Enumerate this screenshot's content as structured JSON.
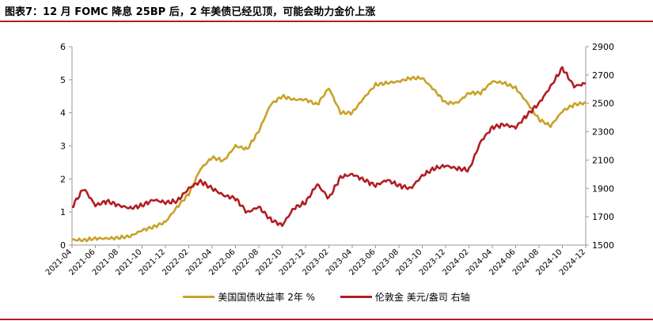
{
  "header": {
    "title": "图表7：12 月 FOMC 降息 25BP 后，2 年美债已经见顶，可能会助力金价上涨"
  },
  "colors": {
    "accent": "#b01e23",
    "series_gold": "#c9a227",
    "series_red": "#b01e23",
    "axis": "#999999"
  },
  "chart_data": {
    "type": "line",
    "title": "",
    "x_ticks": [
      "2021-04",
      "2021-06",
      "2021-08",
      "2021-10",
      "2021-12",
      "2022-02",
      "2022-04",
      "2022-06",
      "2022-08",
      "2022-10",
      "2022-12",
      "2023-02",
      "2023-04",
      "2023-06",
      "2023-08",
      "2023-10",
      "2023-12",
      "2024-02",
      "2024-04",
      "2024-06",
      "2024-08",
      "2024-10",
      "2024-12"
    ],
    "x_range": [
      "2021-04",
      "2024-12"
    ],
    "y_left": {
      "ticks": [
        "0",
        "1",
        "2",
        "3",
        "4",
        "5",
        "6"
      ],
      "range": [
        0,
        6
      ]
    },
    "y_right": {
      "ticks": [
        "1500",
        "1700",
        "1900",
        "2100",
        "2300",
        "2500",
        "2700",
        "2900"
      ],
      "range": [
        1500,
        2900
      ]
    },
    "grid": false,
    "legend": "bottom",
    "series": [
      {
        "name": "美国国债收益率 2年 %",
        "axis": "left",
        "color": "#c9a227",
        "points": [
          [
            "2021-04",
            0.16
          ],
          [
            "2021-05",
            0.15
          ],
          [
            "2021-06",
            0.2
          ],
          [
            "2021-07",
            0.2
          ],
          [
            "2021-08",
            0.22
          ],
          [
            "2021-09",
            0.27
          ],
          [
            "2021-10",
            0.45
          ],
          [
            "2021-11",
            0.55
          ],
          [
            "2021-12",
            0.7
          ],
          [
            "2022-01",
            1.15
          ],
          [
            "2022-02",
            1.55
          ],
          [
            "2022-03",
            2.3
          ],
          [
            "2022-04",
            2.65
          ],
          [
            "2022-05",
            2.55
          ],
          [
            "2022-06",
            3.0
          ],
          [
            "2022-07",
            2.9
          ],
          [
            "2022-08",
            3.45
          ],
          [
            "2022-09",
            4.25
          ],
          [
            "2022-10",
            4.5
          ],
          [
            "2022-11",
            4.4
          ],
          [
            "2022-12",
            4.4
          ],
          [
            "2023-01",
            4.25
          ],
          [
            "2023-02",
            4.75
          ],
          [
            "2023-03",
            4.0
          ],
          [
            "2023-04",
            4.0
          ],
          [
            "2023-05",
            4.45
          ],
          [
            "2023-06",
            4.85
          ],
          [
            "2023-07",
            4.9
          ],
          [
            "2023-08",
            4.95
          ],
          [
            "2023-09",
            5.05
          ],
          [
            "2023-10",
            5.05
          ],
          [
            "2023-11",
            4.7
          ],
          [
            "2023-12",
            4.3
          ],
          [
            "2024-01",
            4.3
          ],
          [
            "2024-02",
            4.6
          ],
          [
            "2024-03",
            4.6
          ],
          [
            "2024-04",
            4.95
          ],
          [
            "2024-05",
            4.9
          ],
          [
            "2024-06",
            4.75
          ],
          [
            "2024-07",
            4.3
          ],
          [
            "2024-08",
            3.8
          ],
          [
            "2024-09",
            3.6
          ],
          [
            "2024-10",
            4.05
          ],
          [
            "2024-11",
            4.25
          ],
          [
            "2024-12",
            4.3
          ]
        ]
      },
      {
        "name": "伦敦金 美元/盎司 右轴",
        "axis": "right",
        "color": "#b01e23",
        "points": [
          [
            "2021-04",
            1770
          ],
          [
            "2021-05",
            1900
          ],
          [
            "2021-06",
            1780
          ],
          [
            "2021-07",
            1810
          ],
          [
            "2021-08",
            1780
          ],
          [
            "2021-09",
            1760
          ],
          [
            "2021-10",
            1780
          ],
          [
            "2021-11",
            1820
          ],
          [
            "2021-12",
            1800
          ],
          [
            "2022-01",
            1810
          ],
          [
            "2022-02",
            1900
          ],
          [
            "2022-03",
            1950
          ],
          [
            "2022-04",
            1900
          ],
          [
            "2022-05",
            1850
          ],
          [
            "2022-06",
            1830
          ],
          [
            "2022-07",
            1730
          ],
          [
            "2022-08",
            1770
          ],
          [
            "2022-09",
            1680
          ],
          [
            "2022-10",
            1640
          ],
          [
            "2022-11",
            1760
          ],
          [
            "2022-12",
            1800
          ],
          [
            "2023-01",
            1930
          ],
          [
            "2023-02",
            1830
          ],
          [
            "2023-03",
            1980
          ],
          [
            "2023-04",
            2000
          ],
          [
            "2023-05",
            1960
          ],
          [
            "2023-06",
            1920
          ],
          [
            "2023-07",
            1960
          ],
          [
            "2023-08",
            1920
          ],
          [
            "2023-09",
            1900
          ],
          [
            "2023-10",
            1990
          ],
          [
            "2023-11",
            2040
          ],
          [
            "2023-12",
            2060
          ],
          [
            "2024-01",
            2040
          ],
          [
            "2024-02",
            2030
          ],
          [
            "2024-03",
            2230
          ],
          [
            "2024-04",
            2330
          ],
          [
            "2024-05",
            2350
          ],
          [
            "2024-06",
            2330
          ],
          [
            "2024-07",
            2420
          ],
          [
            "2024-08",
            2500
          ],
          [
            "2024-09",
            2620
          ],
          [
            "2024-10",
            2750
          ],
          [
            "2024-11",
            2620
          ],
          [
            "2024-12",
            2640
          ]
        ]
      }
    ]
  }
}
